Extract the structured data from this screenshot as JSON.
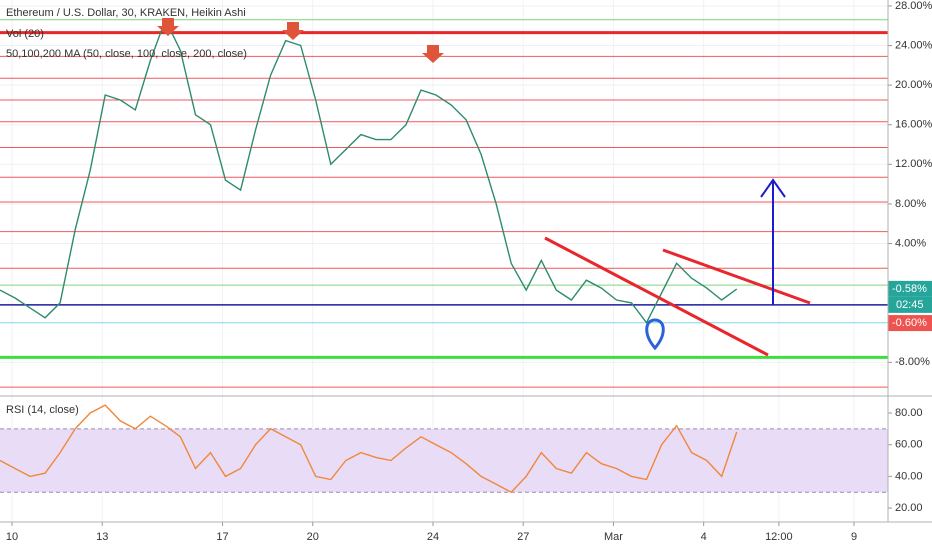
{
  "chart_data": [
    {
      "type": "line",
      "title": "Ethereum / U.S. Dollar, 30, KRAKEN, Heikin Ashi",
      "indicators": [
        "Vol (20)",
        "50,100,200 MA (50, close, 100, close, 200, close)"
      ],
      "xlim": [
        9.6,
        39.13
      ],
      "ylim": [
        -11.3,
        28.6
      ],
      "yticks": [
        {
          "value": 28,
          "label": "28.00%"
        },
        {
          "value": 24,
          "label": "24.00%"
        },
        {
          "value": 20,
          "label": "20.00%"
        },
        {
          "value": 16,
          "label": "16.00%"
        },
        {
          "value": 12,
          "label": "12.00%"
        },
        {
          "value": 8,
          "label": "8.00%"
        },
        {
          "value": 4,
          "label": "4.00%"
        },
        {
          "value": -8,
          "label": "-8.00%"
        }
      ],
      "grid": true,
      "x": [
        9.6,
        10.1,
        10.6,
        11.1,
        11.6,
        12.1,
        12.6,
        13.1,
        13.6,
        14.1,
        14.6,
        15.1,
        15.6,
        16.1,
        16.6,
        17.1,
        17.6,
        18.1,
        18.6,
        19.1,
        19.6,
        20.1,
        20.6,
        21.1,
        21.6,
        22.1,
        22.6,
        23.1,
        23.6,
        24.1,
        24.6,
        25.1,
        25.6,
        26.1,
        26.6,
        27.1,
        27.6,
        28.1,
        28.6,
        29.1,
        29.6,
        30.1,
        30.6,
        31.1,
        31.6,
        32.1,
        32.6,
        33.1,
        33.6,
        34.1
      ],
      "series": [
        {
          "color": "#2e8b6e",
          "values": [
            -0.7,
            -1.5,
            -2.5,
            -3.5,
            -2.0,
            5.4,
            11.4,
            19.0,
            18.5,
            17.5,
            22.5,
            26.6,
            23.5,
            17.0,
            16.0,
            10.4,
            9.4,
            15.5,
            21.0,
            24.5,
            24.0,
            18.5,
            12.0,
            13.5,
            15.0,
            14.5,
            14.5,
            16.0,
            19.5,
            19.0,
            18.0,
            16.5,
            13.0,
            8.0,
            2.0,
            -0.7,
            2.3,
            -0.7,
            -1.7,
            0.3,
            -0.5,
            -1.7,
            -2.0,
            -4.0,
            -1.0,
            2.0,
            0.5,
            -0.5,
            -1.7,
            -0.6
          ]
        }
      ],
      "hlines": [
        {
          "value": 26.6,
          "color": "#7ed67e",
          "width": 1
        },
        {
          "value": 25.3,
          "color": "#e8262b",
          "width": 3
        },
        {
          "value": 22.9,
          "color": "#f0595c",
          "width": 1
        },
        {
          "value": 20.7,
          "color": "#f0595c",
          "width": 1
        },
        {
          "value": 18.5,
          "color": "#f0595c",
          "width": 1
        },
        {
          "value": 16.3,
          "color": "#f0595c",
          "width": 1
        },
        {
          "value": 13.7,
          "color": "#f0595c",
          "width": 1
        },
        {
          "value": 10.7,
          "color": "#f0595c",
          "width": 1
        },
        {
          "value": 8.2,
          "color": "#f0595c",
          "width": 1
        },
        {
          "value": 5.2,
          "color": "#f0595c",
          "width": 1
        },
        {
          "value": 1.5,
          "color": "#f0595c",
          "width": 1
        },
        {
          "value": -0.2,
          "color": "#7ed67e",
          "width": 1
        },
        {
          "value": -2.2,
          "color": "#1c1c9e",
          "width": 1.5
        },
        {
          "value": -4.0,
          "color": "#7fd8e8",
          "width": 1
        },
        {
          "value": -7.5,
          "color": "#3ce03c",
          "width": 3
        },
        {
          "value": -10.5,
          "color": "#f0595c",
          "width": 1
        }
      ],
      "last_price": {
        "value": -0.58,
        "label": "-0.58%",
        "color": "#26a69a"
      },
      "countdown": "02:45",
      "prev_close": {
        "value": -0.6,
        "label": "-0.60%",
        "color": "#ef5350"
      }
    },
    {
      "type": "line",
      "title": "RSI (14, close)",
      "xlim": [
        9.6,
        39.13
      ],
      "xticks": [
        10,
        13,
        17,
        20,
        24,
        27,
        {
          "value": 30,
          "label": "Mar"
        },
        {
          "value": 33,
          "label": "4"
        },
        {
          "value": 35.5,
          "label": "12:00"
        },
        {
          "value": 38,
          "label": "9"
        }
      ],
      "ylim": [
        11.2,
        90.1
      ],
      "yticks": [
        {
          "value": 80,
          "label": "80.00"
        },
        {
          "value": 60,
          "label": "60.00"
        },
        {
          "value": 40,
          "label": "40.00"
        },
        {
          "value": 20,
          "label": "20.00"
        }
      ],
      "band": [
        30,
        70
      ],
      "band_color": "#e9dcf7",
      "x": [
        9.6,
        10.1,
        10.6,
        11.1,
        11.6,
        12.1,
        12.6,
        13.1,
        13.6,
        14.1,
        14.6,
        15.1,
        15.6,
        16.1,
        16.6,
        17.1,
        17.6,
        18.1,
        18.6,
        19.1,
        19.6,
        20.1,
        20.6,
        21.1,
        21.6,
        22.1,
        22.6,
        23.1,
        23.6,
        24.1,
        24.6,
        25.1,
        25.6,
        26.1,
        26.6,
        27.1,
        27.6,
        28.1,
        28.6,
        29.1,
        29.6,
        30.1,
        30.6,
        31.1,
        31.6,
        32.1,
        32.6,
        33.1,
        33.6,
        34.1
      ],
      "series": [
        {
          "color": "#f0873a",
          "values": [
            50,
            45,
            40,
            42,
            55,
            70,
            80,
            85,
            75,
            70,
            78,
            72,
            65,
            45,
            55,
            40,
            45,
            60,
            70,
            65,
            60,
            40,
            38,
            50,
            55,
            52,
            50,
            58,
            65,
            60,
            55,
            48,
            40,
            35,
            30,
            40,
            55,
            45,
            42,
            55,
            48,
            45,
            40,
            38,
            60,
            72,
            55,
            50,
            40,
            68
          ]
        }
      ]
    }
  ]
}
